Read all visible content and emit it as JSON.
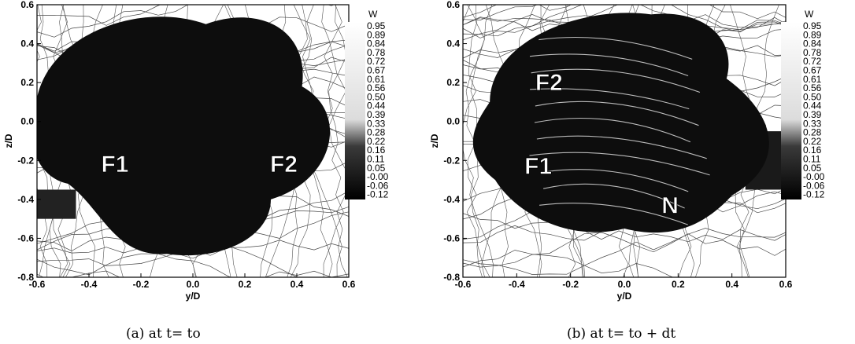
{
  "chart_data": [
    {
      "type": "heatmap",
      "caption": "(a) at t= to",
      "xlabel": "y/D",
      "ylabel": "z/D",
      "xlim": [
        -0.6,
        0.6
      ],
      "ylim": [
        -0.8,
        0.6
      ],
      "xticks": [
        "-0.6",
        "-0.4",
        "-0.2",
        "0.0",
        "0.2",
        "0.4",
        "0.6"
      ],
      "yticks": [
        "0.6",
        "0.4",
        "0.2",
        "0.0",
        "-0.2",
        "-0.4",
        "-0.6",
        "-0.8"
      ],
      "legend_title": "W",
      "legend_levels": [
        "0.95",
        "0.89",
        "0.84",
        "0.78",
        "0.72",
        "0.67",
        "0.61",
        "0.56",
        "0.50",
        "0.44",
        "0.39",
        "0.33",
        "0.28",
        "0.22",
        "0.16",
        "0.11",
        "0.05",
        "-0.00",
        "-0.06",
        "-0.12"
      ],
      "annotations": [
        {
          "text": "F1",
          "x": -0.3,
          "y": -0.22
        },
        {
          "text": "F2",
          "x": 0.35,
          "y": -0.22
        }
      ]
    },
    {
      "type": "heatmap",
      "caption": "(b) at t= to + dt",
      "xlabel": "y/D",
      "ylabel": "z/D",
      "xlim": [
        -0.6,
        0.6
      ],
      "ylim": [
        -0.8,
        0.6
      ],
      "xticks": [
        "-0.6",
        "-0.4",
        "-0.2",
        "0.0",
        "0.2",
        "0.4",
        "0.6"
      ],
      "yticks": [
        "0.6",
        "0.4",
        "0.2",
        "0.0",
        "-0.2",
        "-0.4",
        "-0.6",
        "-0.8"
      ],
      "legend_title": "W",
      "legend_levels": [
        "0.95",
        "0.89",
        "0.84",
        "0.78",
        "0.72",
        "0.67",
        "0.61",
        "0.56",
        "0.50",
        "0.44",
        "0.39",
        "0.33",
        "0.28",
        "0.22",
        "0.16",
        "0.11",
        "0.05",
        "-0.00",
        "-0.06",
        "-0.12"
      ],
      "annotations": [
        {
          "text": "F2",
          "x": -0.28,
          "y": 0.2
        },
        {
          "text": "F1",
          "x": -0.32,
          "y": -0.23
        },
        {
          "text": "N",
          "x": 0.17,
          "y": -0.43
        }
      ]
    }
  ]
}
